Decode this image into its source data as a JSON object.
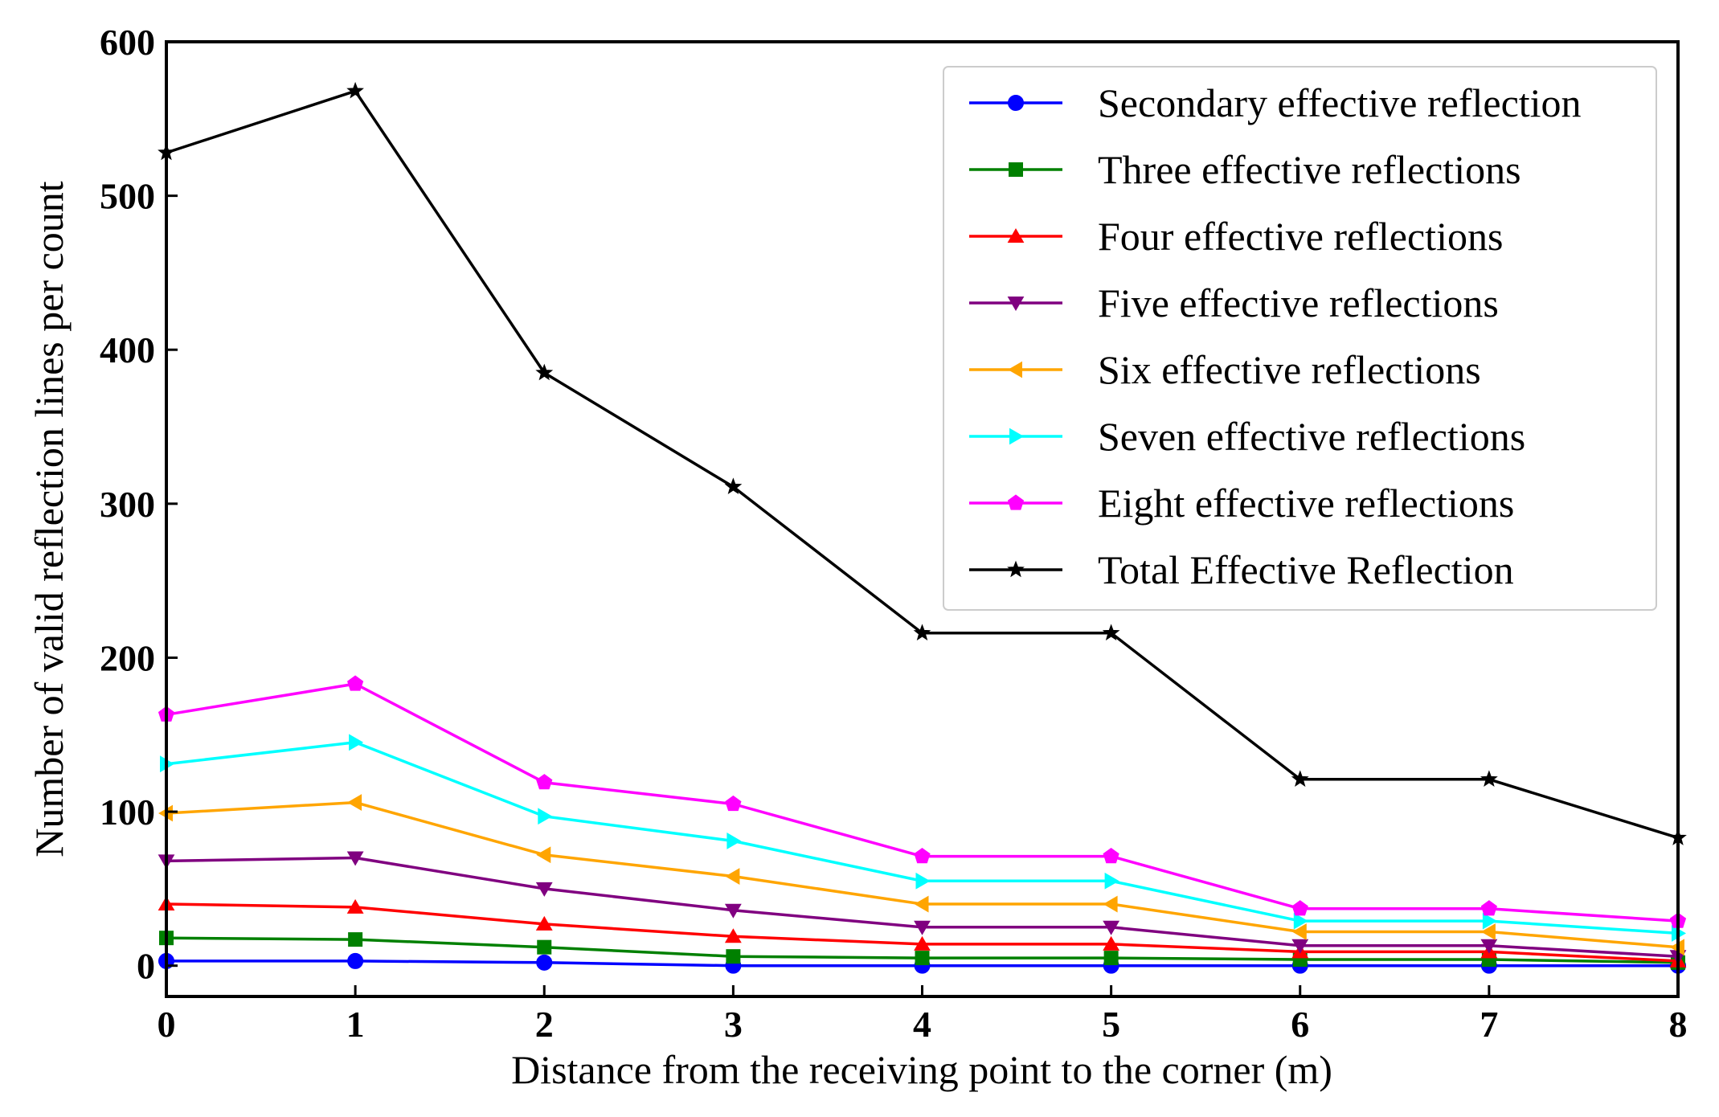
{
  "chart_data": {
    "type": "line",
    "title": "",
    "xlabel": "Distance from the receiving point to the corner (m)",
    "ylabel": "Number of valid reflection lines per count",
    "x": [
      0,
      1,
      2,
      3,
      4,
      5,
      6,
      7,
      8
    ],
    "xticks": [
      "0",
      "1",
      "2",
      "3",
      "4",
      "5",
      "6",
      "7",
      "8"
    ],
    "yticks": [
      "0",
      "100",
      "200",
      "300",
      "400",
      "500",
      "600"
    ],
    "xlim": [
      0,
      8
    ],
    "ylim": [
      -20,
      600
    ],
    "grid": false,
    "legend_position": "top-right",
    "series": [
      {
        "name": "Secondary effective reflection",
        "color": "#0000ff",
        "marker": "circle",
        "values": [
          3,
          3,
          2,
          0,
          0,
          0,
          0,
          0,
          0
        ]
      },
      {
        "name": "Three effective reflections",
        "color": "#008000",
        "marker": "square",
        "values": [
          18,
          17,
          12,
          6,
          5,
          5,
          4,
          4,
          2
        ]
      },
      {
        "name": "Four effective reflections",
        "color": "#ff0000",
        "marker": "triangle-up",
        "values": [
          40,
          38,
          27,
          19,
          14,
          14,
          9,
          9,
          3
        ]
      },
      {
        "name": "Five effective reflections",
        "color": "#800080",
        "marker": "triangle-down",
        "values": [
          68,
          70,
          50,
          36,
          25,
          25,
          13,
          13,
          6
        ]
      },
      {
        "name": "Six effective reflections",
        "color": "#ffa500",
        "marker": "triangle-left",
        "values": [
          99,
          106,
          72,
          58,
          40,
          40,
          22,
          22,
          12
        ]
      },
      {
        "name": "Seven effective reflections",
        "color": "#00ffff",
        "marker": "triangle-right",
        "values": [
          131,
          145,
          97,
          81,
          55,
          55,
          29,
          29,
          21
        ]
      },
      {
        "name": "Eight effective reflections",
        "color": "#ff00ff",
        "marker": "pentagon",
        "values": [
          163,
          183,
          119,
          105,
          71,
          71,
          37,
          37,
          29
        ]
      },
      {
        "name": "Total Effective Reflection",
        "color": "#000000",
        "marker": "star",
        "values": [
          528,
          568,
          385,
          311,
          216,
          216,
          121,
          121,
          83
        ]
      }
    ]
  }
}
